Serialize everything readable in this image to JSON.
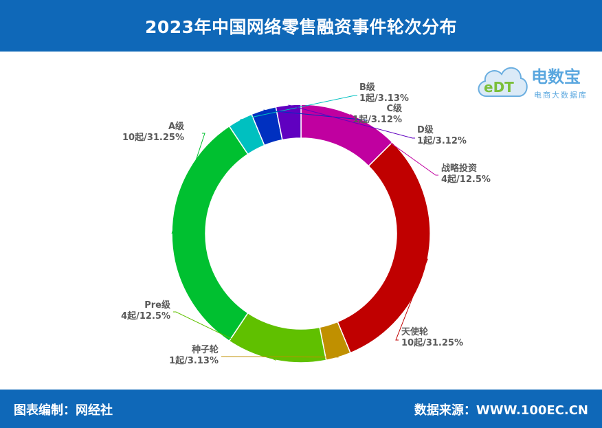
{
  "header": {
    "title": "2023年中国网络零售融资事件轮次分布"
  },
  "footer": {
    "left": "图表编制：网经社",
    "right": "数据来源：WWW.100EC.CN"
  },
  "logo": {
    "title": "电数宝",
    "subtitle": "电商大数据库",
    "mark_text": "eDT",
    "icon": "cloud-icon"
  },
  "chart_data": {
    "type": "pie",
    "donut": true,
    "start_angle_deg": 0,
    "direction": "clockwise",
    "slices": [
      {
        "name": "战略投资",
        "count": 4,
        "label": "4起/12.5%",
        "percent": 12.5,
        "color": "#c000a0"
      },
      {
        "name": "天使轮",
        "count": 10,
        "label": "10起/31.25%",
        "percent": 31.25,
        "color": "#c00000"
      },
      {
        "name": "种子轮",
        "count": 1,
        "label": "1起/3.13%",
        "percent": 3.13,
        "color": "#c09000"
      },
      {
        "name": "Pre级",
        "count": 4,
        "label": "4起/12.5%",
        "percent": 12.5,
        "color": "#60c000"
      },
      {
        "name": "A级",
        "count": 10,
        "label": "10起/31.25%",
        "percent": 31.25,
        "color": "#00c030"
      },
      {
        "name": "B级",
        "count": 1,
        "label": "1起/3.13%",
        "percent": 3.13,
        "color": "#00c0c0"
      },
      {
        "name": "C级",
        "count": 1,
        "label": "1起/3.12%",
        "percent": 3.12,
        "color": "#0030c0"
      },
      {
        "name": "D级",
        "count": 1,
        "label": "1起/3.12%",
        "percent": 3.12,
        "color": "#6000c0"
      }
    ]
  }
}
